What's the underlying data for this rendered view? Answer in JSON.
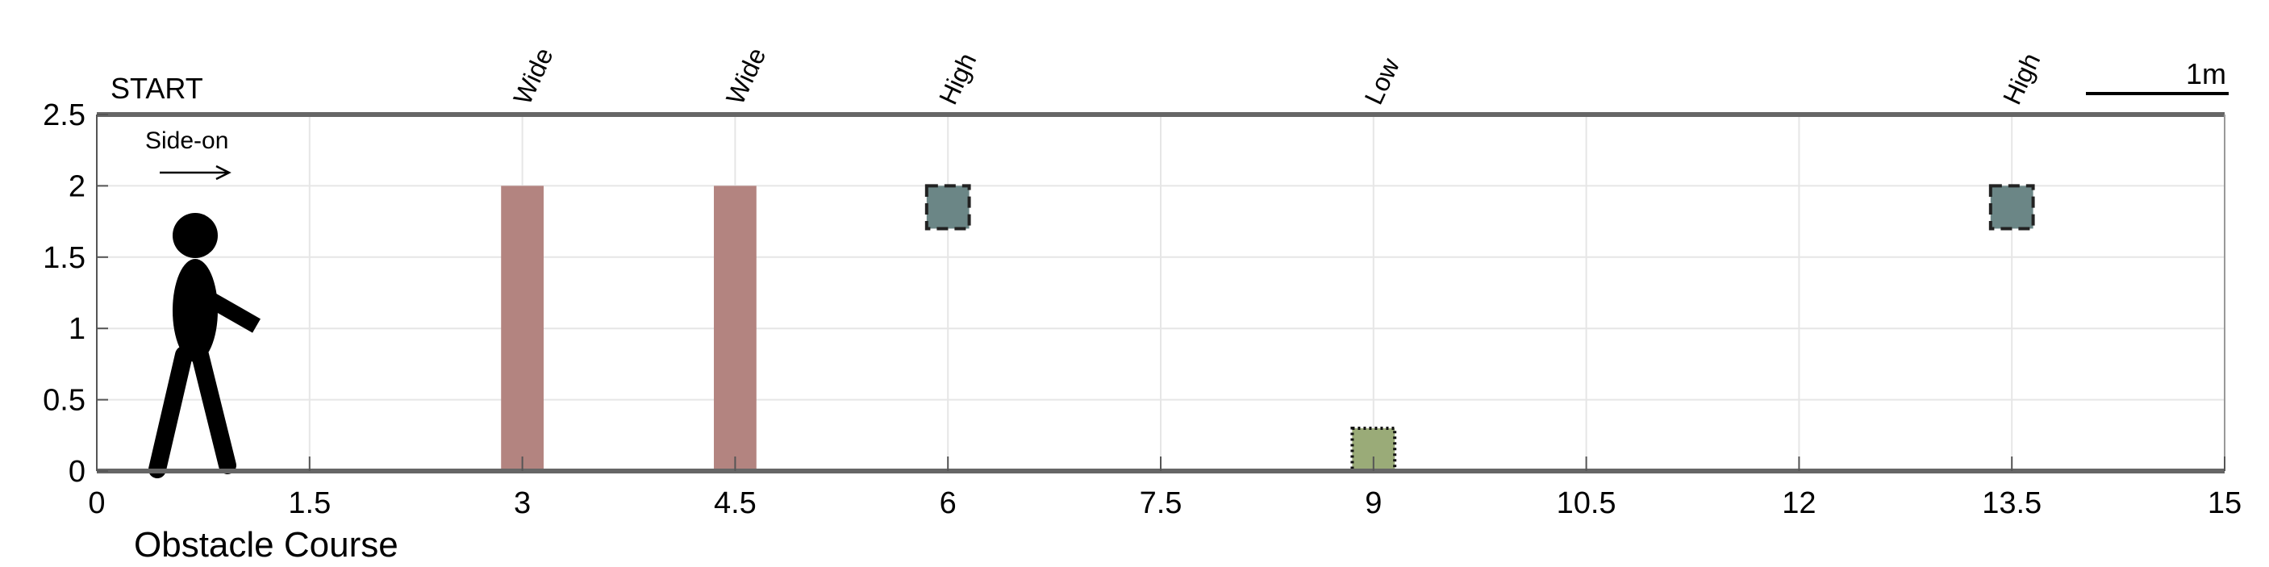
{
  "title": "Obstacle Course",
  "start_label": "START",
  "direction_label": "Side-on",
  "scale_label": "1m",
  "chart_data": {
    "type": "diagram",
    "xlim": [
      0,
      15
    ],
    "ylim": [
      0,
      2.5
    ],
    "x_ticks": [
      "0",
      "1.5",
      "3",
      "4.5",
      "6",
      "7.5",
      "9",
      "10.5",
      "12",
      "13.5",
      "15"
    ],
    "x_tick_values": [
      0,
      1.5,
      3,
      4.5,
      6,
      7.5,
      9,
      10.5,
      12,
      13.5,
      15
    ],
    "y_ticks": [
      "0",
      "0.5",
      "1",
      "1.5",
      "2",
      "2.5"
    ],
    "y_tick_values": [
      0,
      0.5,
      1,
      1.5,
      2,
      2.5
    ],
    "grid": true,
    "obstacles": [
      {
        "label": "Wide",
        "x": 3.0,
        "width": 0.3,
        "y_bottom": 0,
        "y_top": 2.0,
        "color": "#b38480",
        "border": "none"
      },
      {
        "label": "Wide",
        "x": 4.5,
        "width": 0.3,
        "y_bottom": 0,
        "y_top": 2.0,
        "color": "#b38480",
        "border": "none"
      },
      {
        "label": "High",
        "x": 6.0,
        "width": 0.3,
        "y_bottom": 1.7,
        "y_top": 2.0,
        "color": "#6b8686",
        "border": "dashed"
      },
      {
        "label": "Low",
        "x": 9.0,
        "width": 0.3,
        "y_bottom": 0,
        "y_top": 0.3,
        "color": "#9aab78",
        "border": "dotted"
      },
      {
        "label": "High",
        "x": 13.5,
        "width": 0.3,
        "y_bottom": 1.7,
        "y_top": 2.0,
        "color": "#6b8686",
        "border": "dashed"
      }
    ],
    "walker": {
      "x": 0.7
    }
  }
}
